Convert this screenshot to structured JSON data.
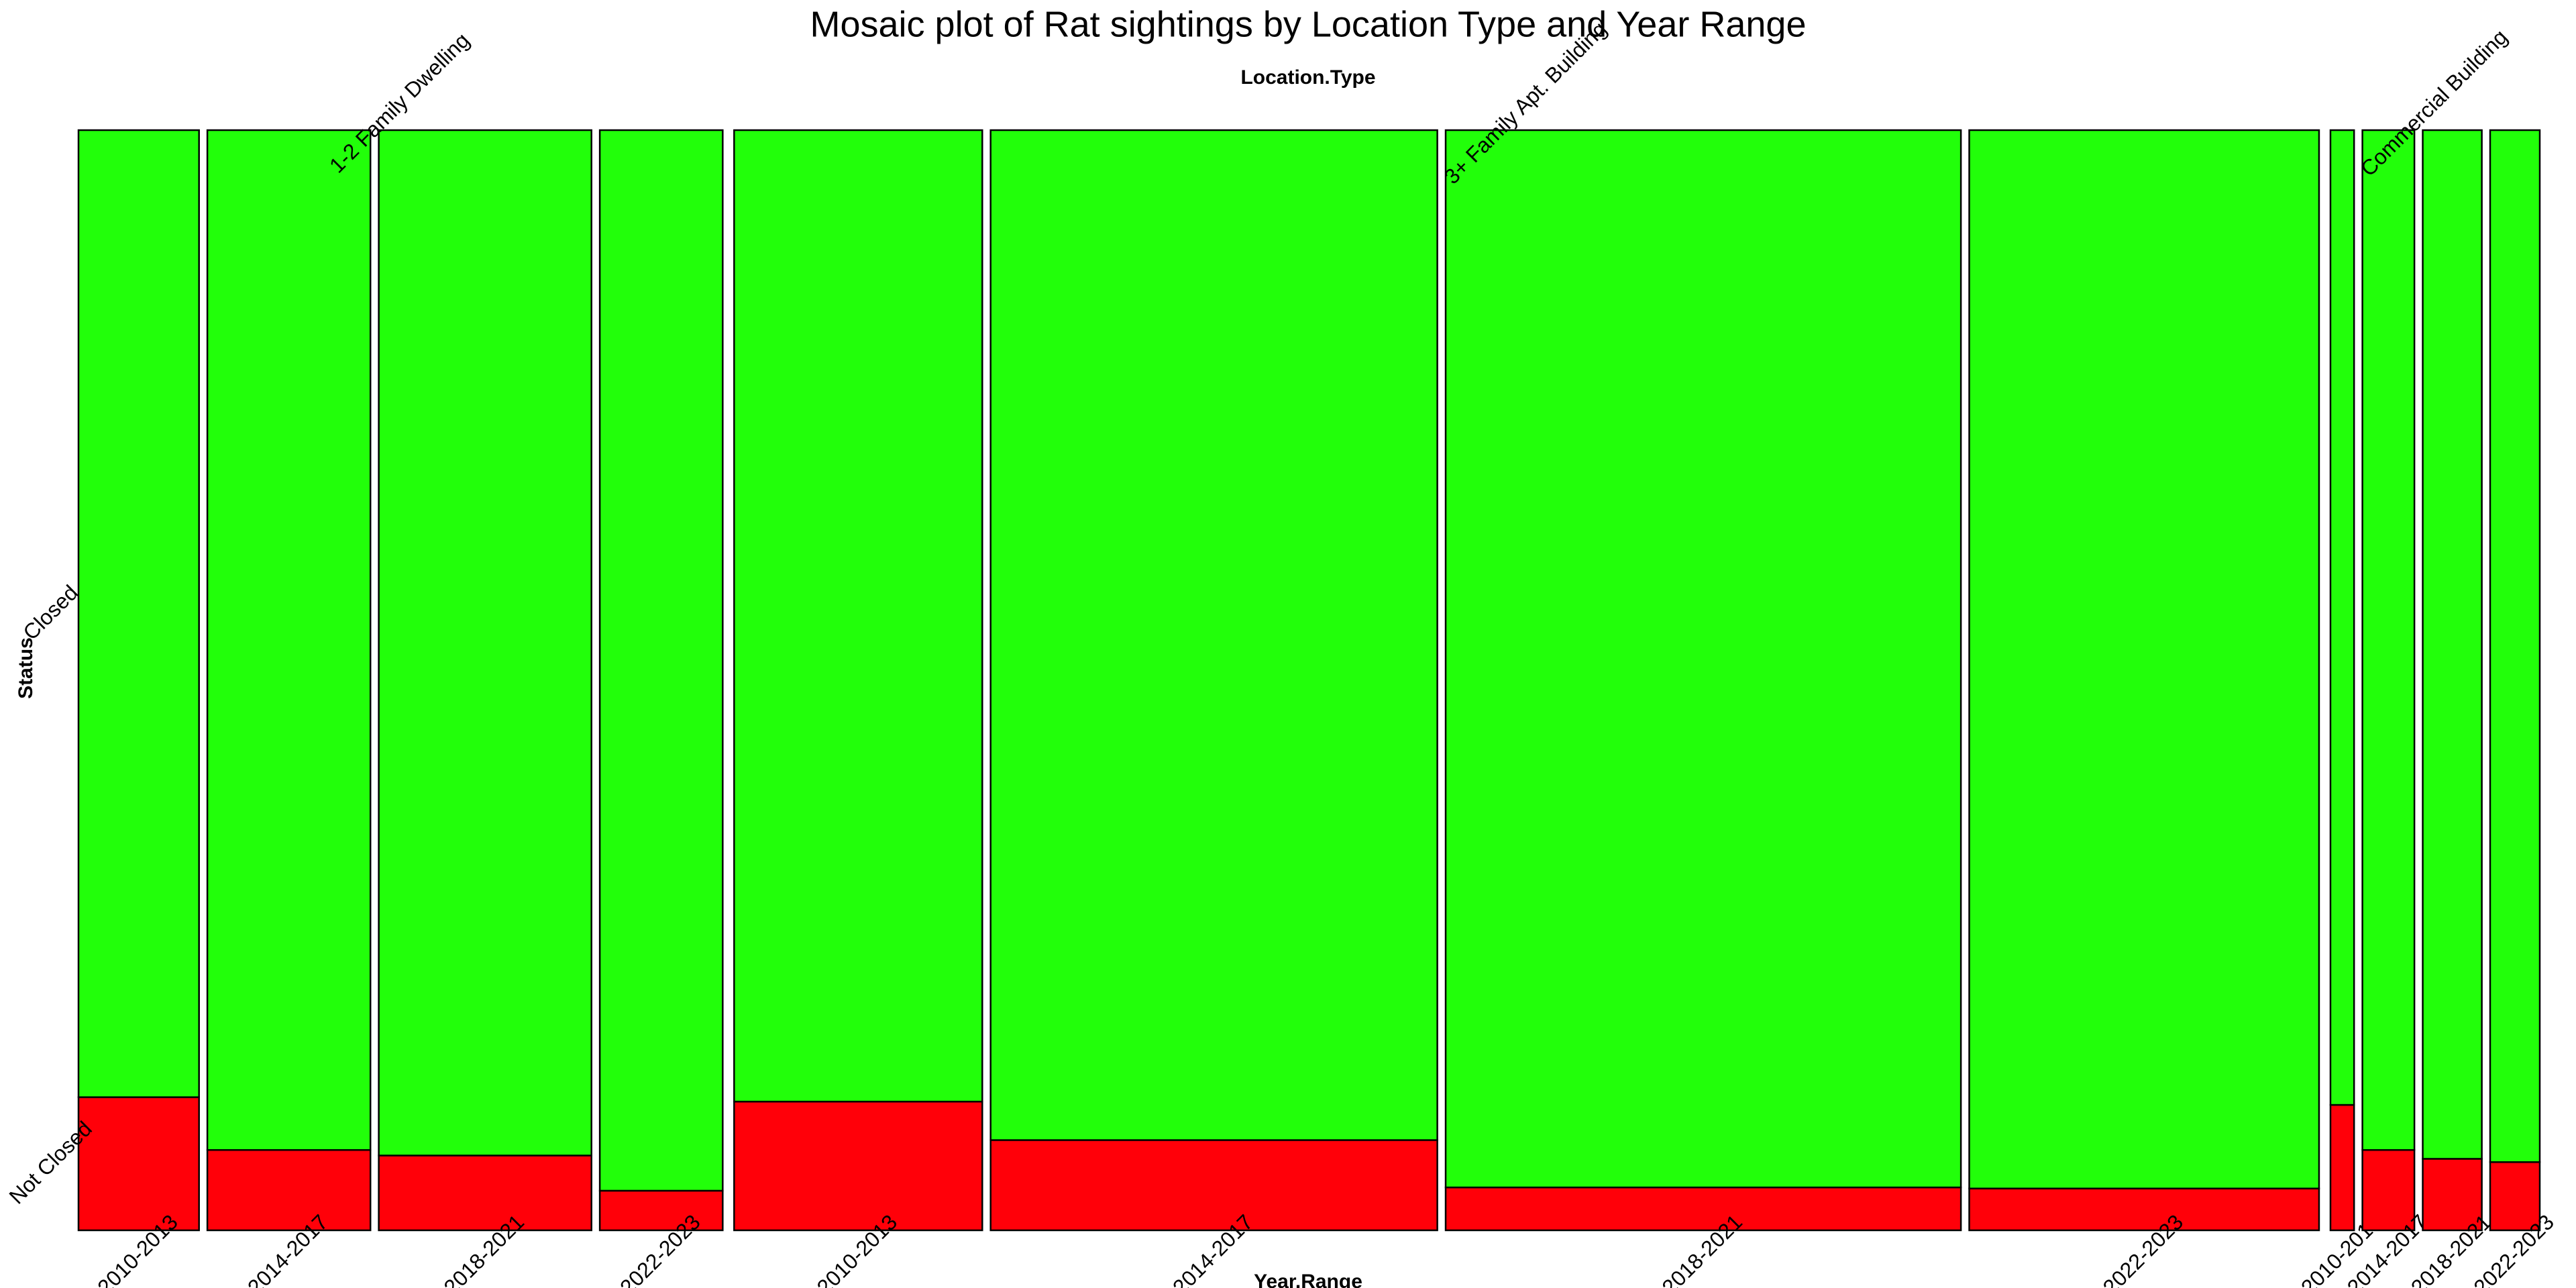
{
  "chart_data": {
    "type": "mosaic",
    "title": "Mosaic plot of Rat sightings by Location Type and Year Range",
    "top_label": "Location.Type",
    "x_label": "Year.Range",
    "y_label": "Status",
    "series": [
      {
        "name": "Not Closed",
        "color": "#ff0009"
      },
      {
        "name": "Closed",
        "color": "#22ff0a"
      }
    ],
    "groups": [
      {
        "name": "1-2 Family Dwelling",
        "categories": [
          "2010-2013",
          "2014-2017",
          "2018-2021",
          "2022-2023"
        ],
        "widths": [
          5.1,
          6.9,
          9.0,
          5.2
        ],
        "series": [
          {
            "values": [
              12.1,
              7.3,
              6.8,
              3.6
            ]
          },
          {
            "values": [
              87.9,
              92.7,
              93.2,
              96.4
            ]
          }
        ]
      },
      {
        "name": "3+ Family Apt. Building",
        "categories": [
          "2010-2013",
          "2014-2017",
          "2018-2021",
          "2022-2023"
        ],
        "widths": [
          10.5,
          18.9,
          21.8,
          14.8
        ],
        "series": [
          {
            "values": [
              11.7,
              8.2,
              3.9,
              3.8
            ]
          },
          {
            "values": [
              88.3,
              91.8,
              96.1,
              96.2
            ]
          }
        ]
      },
      {
        "name": "Commercial Building",
        "categories": [
          "2010-2013",
          "2014-2017",
          "2018-2021",
          "2022-2023"
        ],
        "widths": [
          1.0,
          2.2,
          2.5,
          2.1
        ],
        "series": [
          {
            "values": [
              11.4,
              7.3,
              6.5,
              6.2
            ]
          },
          {
            "values": [
              88.6,
              92.7,
              93.5,
              93.8
            ]
          }
        ]
      }
    ]
  }
}
